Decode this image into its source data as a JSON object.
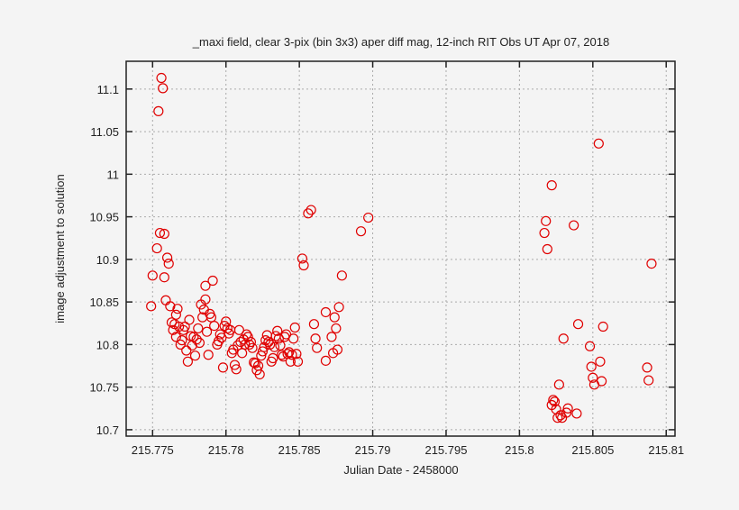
{
  "chart_data": {
    "type": "scatter",
    "title": "_maxi field, clear 3-pix (bin 3x3) aper diff mag,  12-inch RIT Obs UT Apr 07, 2018",
    "xlabel": "Julian Date - 2458000",
    "ylabel": "image adjustment to solution",
    "xlim": [
      215.7732,
      215.8106
    ],
    "ylim": [
      10.6925,
      11.1326
    ],
    "xticks": [
      215.775,
      215.78,
      215.785,
      215.79,
      215.795,
      215.8,
      215.805,
      215.81
    ],
    "xtick_labels": [
      "215.775",
      "215.78",
      "215.785",
      "215.79",
      "215.795",
      "215.8",
      "215.805",
      "215.81"
    ],
    "yticks": [
      10.7,
      10.75,
      10.8,
      10.85,
      10.9,
      10.95,
      11.0,
      11.05,
      11.1
    ],
    "ytick_labels": [
      "10.7",
      "10.75",
      "10.8",
      "10.85",
      "10.9",
      "10.95",
      "11",
      "11.05",
      "11.1"
    ],
    "grid": true,
    "marker": "open-circle",
    "marker_color": "#e00000",
    "series": [
      {
        "name": "diff mag",
        "points": [
          [
            215.7756,
            11.113
          ],
          [
            215.7757,
            11.101
          ],
          [
            215.7754,
            11.074
          ],
          [
            215.775,
            10.881
          ],
          [
            215.7749,
            10.845
          ],
          [
            215.7753,
            10.913
          ],
          [
            215.7755,
            10.931
          ],
          [
            215.7758,
            10.93
          ],
          [
            215.776,
            10.902
          ],
          [
            215.7761,
            10.895
          ],
          [
            215.7758,
            10.879
          ],
          [
            215.7759,
            10.852
          ],
          [
            215.7762,
            10.845
          ],
          [
            215.7763,
            10.826
          ],
          [
            215.7764,
            10.817
          ],
          [
            215.7765,
            10.824
          ],
          [
            215.7766,
            10.835
          ],
          [
            215.7767,
            10.842
          ],
          [
            215.7766,
            10.809
          ],
          [
            215.7768,
            10.821
          ],
          [
            215.7769,
            10.8
          ],
          [
            215.777,
            10.805
          ],
          [
            215.7771,
            10.817
          ],
          [
            215.7772,
            10.821
          ],
          [
            215.7773,
            10.793
          ],
          [
            215.7774,
            10.78
          ],
          [
            215.7775,
            10.829
          ],
          [
            215.7776,
            10.81
          ],
          [
            215.7777,
            10.799
          ],
          [
            215.7778,
            10.809
          ],
          [
            215.7779,
            10.787
          ],
          [
            215.778,
            10.806
          ],
          [
            215.7781,
            10.819
          ],
          [
            215.7782,
            10.802
          ],
          [
            215.7783,
            10.847
          ],
          [
            215.7784,
            10.832
          ],
          [
            215.7785,
            10.841
          ],
          [
            215.7786,
            10.853
          ],
          [
            215.7786,
            10.869
          ],
          [
            215.7787,
            10.815
          ],
          [
            215.7788,
            10.788
          ],
          [
            215.7789,
            10.836
          ],
          [
            215.779,
            10.832
          ],
          [
            215.7791,
            10.875
          ],
          [
            215.7792,
            10.822
          ],
          [
            215.7794,
            10.8
          ],
          [
            215.7795,
            10.804
          ],
          [
            215.7796,
            10.812
          ],
          [
            215.7797,
            10.808
          ],
          [
            215.7798,
            10.773
          ],
          [
            215.7799,
            10.822
          ],
          [
            215.78,
            10.827
          ],
          [
            215.7801,
            10.819
          ],
          [
            215.7802,
            10.813
          ],
          [
            215.7803,
            10.817
          ],
          [
            215.7804,
            10.79
          ],
          [
            215.7805,
            10.794
          ],
          [
            215.7806,
            10.776
          ],
          [
            215.7807,
            10.771
          ],
          [
            215.7808,
            10.799
          ],
          [
            215.7809,
            10.817
          ],
          [
            215.781,
            10.803
          ],
          [
            215.7811,
            10.79
          ],
          [
            215.7812,
            10.806
          ],
          [
            215.7813,
            10.8
          ],
          [
            215.7814,
            10.812
          ],
          [
            215.7815,
            10.809
          ],
          [
            215.7816,
            10.8
          ],
          [
            215.7817,
            10.803
          ],
          [
            215.7818,
            10.796
          ],
          [
            215.7819,
            10.779
          ],
          [
            215.782,
            10.778
          ],
          [
            215.7821,
            10.77
          ],
          [
            215.7822,
            10.775
          ],
          [
            215.7823,
            10.765
          ],
          [
            215.7824,
            10.787
          ],
          [
            215.7825,
            10.792
          ],
          [
            215.7826,
            10.797
          ],
          [
            215.7827,
            10.805
          ],
          [
            215.7828,
            10.811
          ],
          [
            215.7829,
            10.803
          ],
          [
            215.783,
            10.8
          ],
          [
            215.7831,
            10.78
          ],
          [
            215.7832,
            10.784
          ],
          [
            215.7833,
            10.797
          ],
          [
            215.7834,
            10.81
          ],
          [
            215.7835,
            10.816
          ],
          [
            215.7836,
            10.807
          ],
          [
            215.7837,
            10.799
          ],
          [
            215.7838,
            10.788
          ],
          [
            215.7839,
            10.786
          ],
          [
            215.784,
            10.809
          ],
          [
            215.7841,
            10.812
          ],
          [
            215.7842,
            10.789
          ],
          [
            215.7843,
            10.791
          ],
          [
            215.7844,
            10.78
          ],
          [
            215.7845,
            10.788
          ],
          [
            215.7846,
            10.807
          ],
          [
            215.7847,
            10.82
          ],
          [
            215.7848,
            10.789
          ],
          [
            215.7849,
            10.78
          ],
          [
            215.7852,
            10.901
          ],
          [
            215.7853,
            10.893
          ],
          [
            215.7856,
            10.954
          ],
          [
            215.7858,
            10.958
          ],
          [
            215.786,
            10.824
          ],
          [
            215.7861,
            10.807
          ],
          [
            215.7862,
            10.796
          ],
          [
            215.7868,
            10.838
          ],
          [
            215.7868,
            10.781
          ],
          [
            215.7872,
            10.809
          ],
          [
            215.7873,
            10.79
          ],
          [
            215.7874,
            10.832
          ],
          [
            215.7875,
            10.819
          ],
          [
            215.7876,
            10.794
          ],
          [
            215.7877,
            10.844
          ],
          [
            215.7879,
            10.881
          ],
          [
            215.7892,
            10.933
          ],
          [
            215.7897,
            10.949
          ],
          [
            215.8017,
            10.931
          ],
          [
            215.8018,
            10.945
          ],
          [
            215.8019,
            10.912
          ],
          [
            215.8022,
            10.987
          ],
          [
            215.8022,
            10.729
          ],
          [
            215.8023,
            10.735
          ],
          [
            215.8024,
            10.733
          ],
          [
            215.8025,
            10.724
          ],
          [
            215.8026,
            10.714
          ],
          [
            215.8027,
            10.753
          ],
          [
            215.8028,
            10.717
          ],
          [
            215.8029,
            10.714
          ],
          [
            215.803,
            10.807
          ],
          [
            215.8032,
            10.72
          ],
          [
            215.8033,
            10.725
          ],
          [
            215.8037,
            10.94
          ],
          [
            215.8039,
            10.719
          ],
          [
            215.804,
            10.824
          ],
          [
            215.8048,
            10.798
          ],
          [
            215.8049,
            10.774
          ],
          [
            215.805,
            10.761
          ],
          [
            215.8051,
            10.753
          ],
          [
            215.8054,
            11.036
          ],
          [
            215.8055,
            10.78
          ],
          [
            215.8056,
            10.757
          ],
          [
            215.8057,
            10.821
          ],
          [
            215.8087,
            10.773
          ],
          [
            215.8088,
            10.758
          ],
          [
            215.809,
            10.895
          ]
        ]
      }
    ]
  }
}
